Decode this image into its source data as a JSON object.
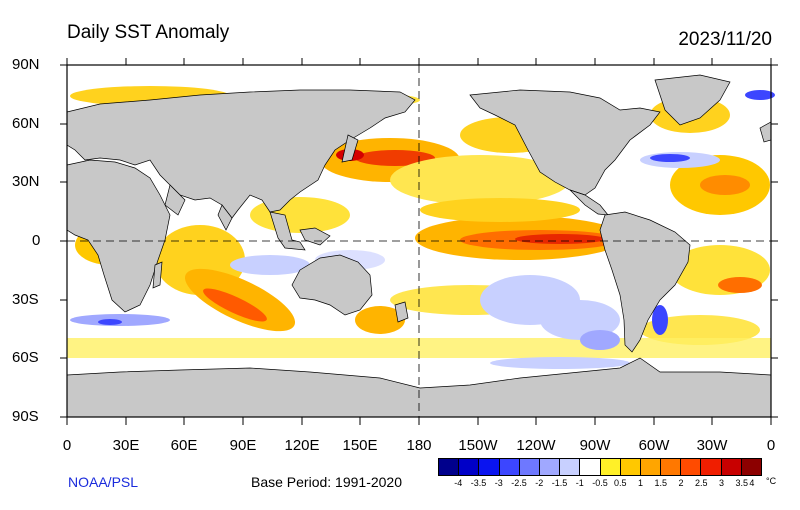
{
  "header": {
    "title": "Daily SST Anomaly",
    "date": "2023/11/20"
  },
  "map": {
    "projection": "equirectangular",
    "lon_range": [
      0,
      360
    ],
    "lat_range": [
      -90,
      90
    ],
    "land_color": "#c8c8c8",
    "ocean_color": "#ffffff",
    "lat_ticks": [
      "90N",
      "60N",
      "30N",
      "0",
      "30S",
      "60S",
      "90S"
    ],
    "lon_ticks": [
      "0",
      "30E",
      "60E",
      "90E",
      "120E",
      "150E",
      "180",
      "150W",
      "120W",
      "90W",
      "60W",
      "30W",
      "0"
    ],
    "reference_lines": [
      "equator",
      "dateline"
    ]
  },
  "footer": {
    "credit": "NOAA/PSL",
    "base_period": "Base Period: 1991-2020"
  },
  "colorbar": {
    "colors": [
      "#00008c",
      "#0000c8",
      "#0a14f0",
      "#3c46ff",
      "#6e78ff",
      "#a0a8ff",
      "#c8d0ff",
      "#ffffff",
      "#fff028",
      "#ffc800",
      "#ffa500",
      "#ff7800",
      "#ff4b00",
      "#f01e00",
      "#c80000",
      "#8c0000"
    ],
    "labels": [
      "-4",
      "-3.5",
      "-3",
      "-2.5",
      "-2",
      "-1.5",
      "-1",
      "-0.5",
      "0.5",
      "1",
      "1.5",
      "2",
      "2.5",
      "3",
      "3.5",
      "4"
    ],
    "unit": "°C"
  }
}
